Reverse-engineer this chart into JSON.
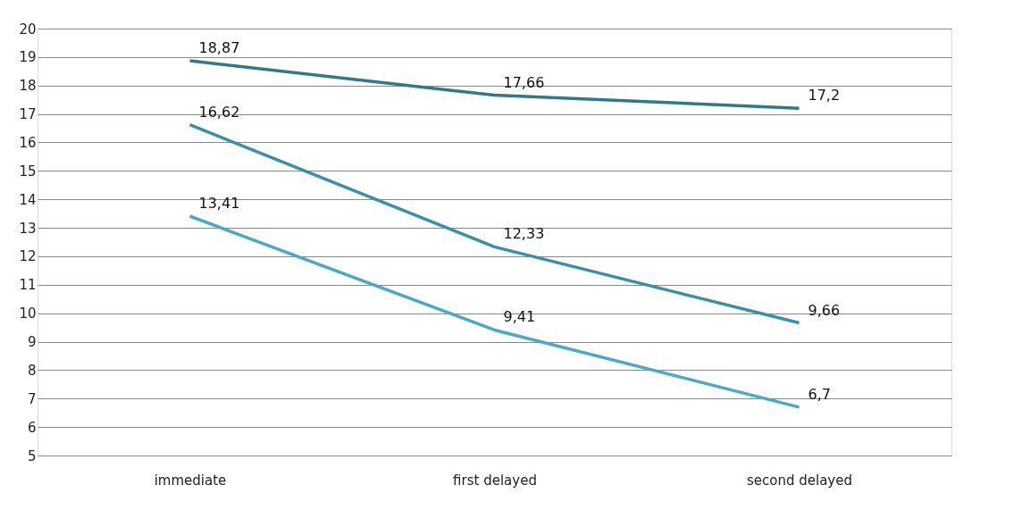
{
  "chart_data": {
    "type": "line",
    "categories": [
      "immediate",
      "first delayed",
      "second delayed"
    ],
    "series": [
      {
        "color": "#2f7a8a",
        "values": [
          18.87,
          17.66,
          17.2
        ],
        "value_labels": [
          "18,87",
          "17,66",
          "17,2"
        ]
      },
      {
        "color": "#3a90a6",
        "values": [
          16.62,
          12.33,
          9.66
        ],
        "value_labels": [
          "16,62",
          "12,33",
          "9,66"
        ]
      },
      {
        "color": "#4aaac6",
        "values": [
          13.41,
          9.41,
          6.7
        ],
        "value_labels": [
          "13,41",
          "9,41",
          "6,7"
        ]
      }
    ],
    "ylim": [
      5,
      20
    ],
    "yticks": [
      5,
      6,
      7,
      8,
      9,
      10,
      11,
      12,
      13,
      14,
      15,
      16,
      17,
      18,
      19,
      20
    ],
    "grid": "y",
    "legend": false,
    "marker": "none",
    "line_style": "solid"
  }
}
